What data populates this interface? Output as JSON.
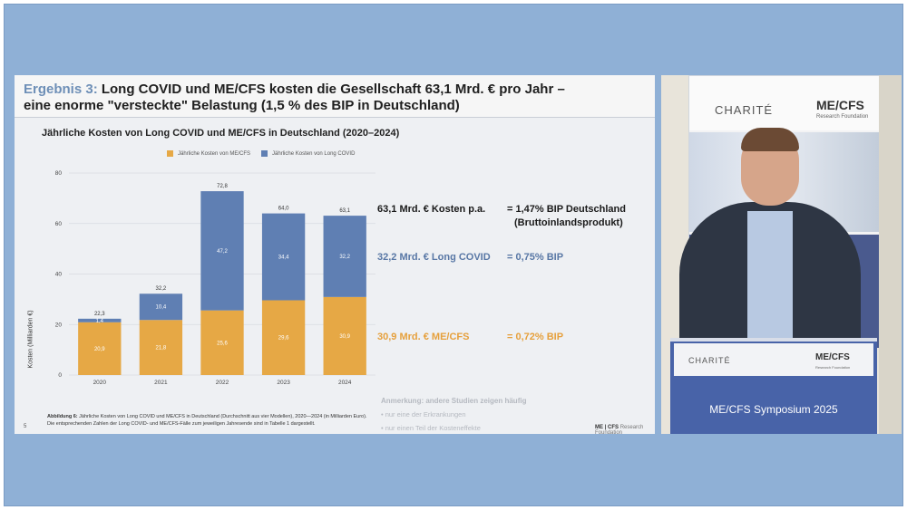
{
  "slide": {
    "title_prefix": "Ergebnis 3:",
    "title_line1": "Long COVID und ME/CFS kosten die Gesellschaft 63,1 Mrd. € pro Jahr –",
    "title_line2": "eine enorme \"versteckte\" Belastung (1,5 % des BIP in Deutschland)",
    "subtitle": "Jährliche Kosten von Long COVID und ME/CFS in Deutschland (2020–2024)",
    "page_number": "5",
    "caption_bold": "Abbildung 6:",
    "caption_text": "Jährliche Kosten von Long COVID und ME/CFS in Deutschland (Durchschnitt aus vier Modellen), 2020—2024 (in Milliarden Euro). Die entsprechenden Zahlen der Long COVID- und ME/CFS-Fälle zum jeweiligen Jahresende sind in Tabelle 1 dargestellt.",
    "footer_brand": "ME | CFS",
    "footer_brand_sub": "Research Foundation"
  },
  "stats": {
    "s1_left": "63,1 Mrd. € Kosten p.a.",
    "s1_right": "= 1,47% BIP Deutschland",
    "s1_right2": "(Bruttoinlandsprodukt)",
    "s2_left": "32,2 Mrd. € Long COVID",
    "s2_right": "= 0,75% BIP",
    "s3_left": "30,9 Mrd. € ME/CFS",
    "s3_right": "= 0,72% BIP"
  },
  "note": {
    "heading": "Anmerkung: andere Studien zeigen häufig",
    "items": [
      "nur eine der Erkrankungen",
      "nur einen Teil der Kosteneffekte"
    ]
  },
  "colors": {
    "mecfs": "#e6a845",
    "longcovid": "#5f7fb3",
    "title_accent": "#6e8fb7"
  },
  "chart_data": {
    "type": "bar",
    "stacked": true,
    "categories": [
      "2020",
      "2021",
      "2022",
      "2023",
      "2024"
    ],
    "series": [
      {
        "name": "Jährliche Kosten von ME/CFS",
        "values": [
          20.9,
          21.8,
          25.6,
          29.6,
          30.9
        ]
      },
      {
        "name": "Jährliche Kosten von Long COVID",
        "values": [
          1.4,
          10.4,
          47.2,
          34.4,
          32.2
        ]
      }
    ],
    "series_labels": [
      [
        "20,9",
        "21,8",
        "25,6",
        "29,6",
        "30,9"
      ],
      [
        "1,4",
        "10,4",
        "47,2",
        "34,4",
        "32,2"
      ]
    ],
    "totals": [
      22.3,
      32.2,
      72.8,
      64.0,
      63.1
    ],
    "total_labels": [
      "22,3",
      "32,2",
      "72,8",
      "64,0",
      "63,1"
    ],
    "ylabel": "Kosten (Milliarden €)",
    "xlabel": "",
    "ylim": [
      0,
      80
    ],
    "yticks": [
      0,
      20,
      40,
      60,
      80
    ],
    "legend_position": "top-right"
  },
  "video": {
    "wall_logo_left": "CHARITÉ",
    "wall_logo_right": "ME/CFS",
    "wall_logo_right_sub": "Research Foundation",
    "podium_logo_left": "CHARITÉ",
    "podium_logo_right": "ME/CFS",
    "podium_logo_right_sub": "Research Foundation",
    "podium_title": "ME/CFS Symposium 2025"
  }
}
